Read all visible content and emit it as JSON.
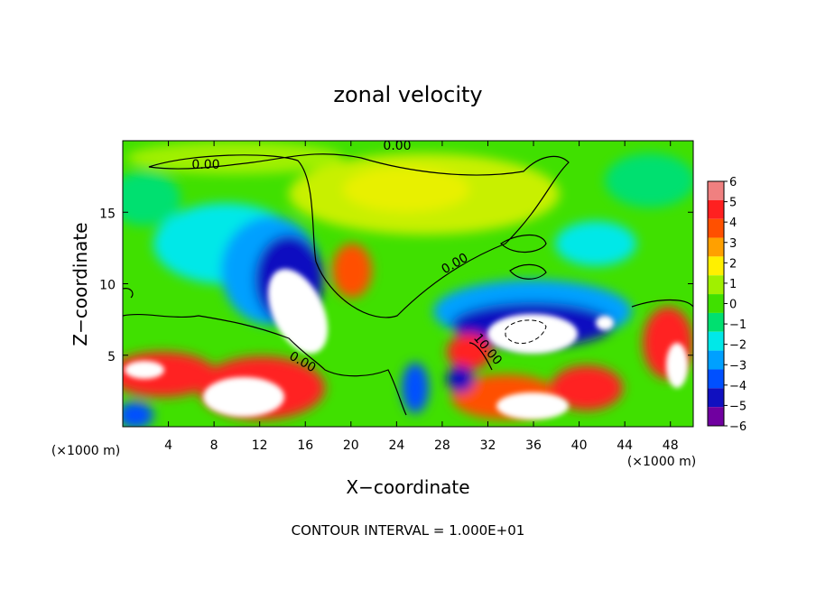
{
  "chart_data": {
    "type": "heatmap",
    "title": "zonal velocity",
    "xlabel": "X−coordinate",
    "ylabel": "Z−coordinate",
    "x_unit": "(×1000 m)",
    "y_unit": "(×1000 m)",
    "xlim": [
      0,
      50
    ],
    "ylim": [
      0,
      20
    ],
    "x_ticks": [
      4,
      8,
      12,
      16,
      20,
      24,
      28,
      32,
      36,
      40,
      44,
      48
    ],
    "y_ticks": [
      5,
      10,
      15
    ],
    "colorbar": {
      "ticks": [
        6,
        5,
        4,
        3,
        2,
        1,
        0,
        -1,
        -2,
        -3,
        -4,
        -5,
        -6
      ],
      "tick_labels": [
        "6",
        "5",
        "4",
        "3",
        "2",
        "1",
        "0",
        "−1",
        "−2",
        "−3",
        "−4",
        "−5",
        "−6"
      ],
      "colors": [
        "#f08080",
        "#ff2020",
        "#ff5000",
        "#ffa000",
        "#fff000",
        "#a0f000",
        "#40e000",
        "#00e070",
        "#00e8e8",
        "#00a0ff",
        "#0050ff",
        "#1010c0",
        "#7000a0"
      ]
    },
    "contour_labels": [
      "0.00",
      "0.00",
      "0.00",
      "0.00",
      "10.00"
    ],
    "contour_interval_text": "CONTOUR INTERVAL = 1.000E+01"
  }
}
